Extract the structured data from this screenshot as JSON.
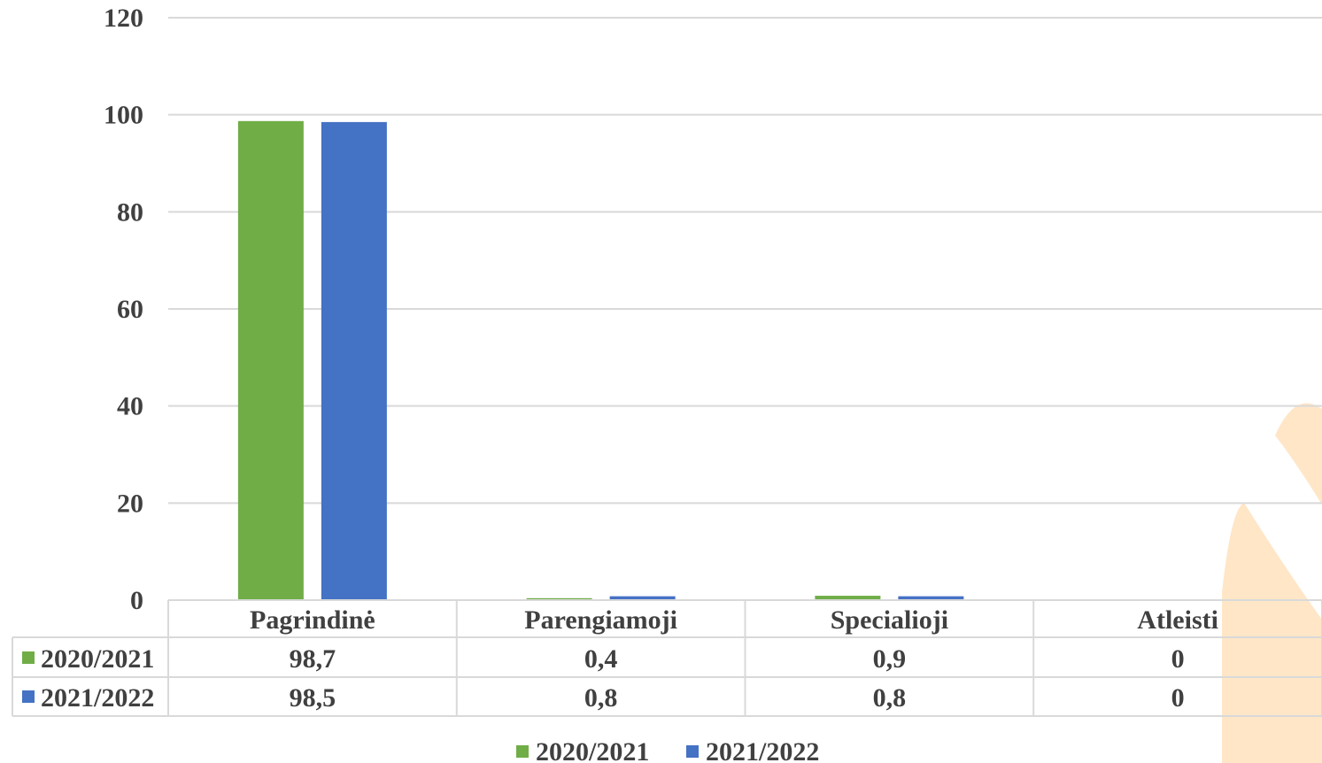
{
  "chart_data": {
    "type": "bar",
    "categories": [
      "Pagrindinė",
      "Parengiamoji",
      "Specialioji",
      "Atleisti"
    ],
    "series": [
      {
        "name": "2020/2021",
        "values": [
          98.7,
          0.4,
          0.9,
          0
        ],
        "labels": [
          "98,7",
          "0,4",
          "0,9",
          "0"
        ]
      },
      {
        "name": "2021/2022",
        "values": [
          98.5,
          0.8,
          0.8,
          0
        ],
        "labels": [
          "98,5",
          "0,8",
          "0,8",
          "0"
        ]
      }
    ],
    "ylim": [
      0,
      120
    ],
    "yticks": [
      0,
      20,
      40,
      60,
      80,
      100,
      120
    ],
    "grid": true,
    "legend": "bottom",
    "data_table": true
  },
  "colors": {
    "series": [
      "#70AD47",
      "#4472C4"
    ],
    "grid": "#D9D9D9",
    "text": "#404040",
    "watermark": "#FFE6C7"
  }
}
